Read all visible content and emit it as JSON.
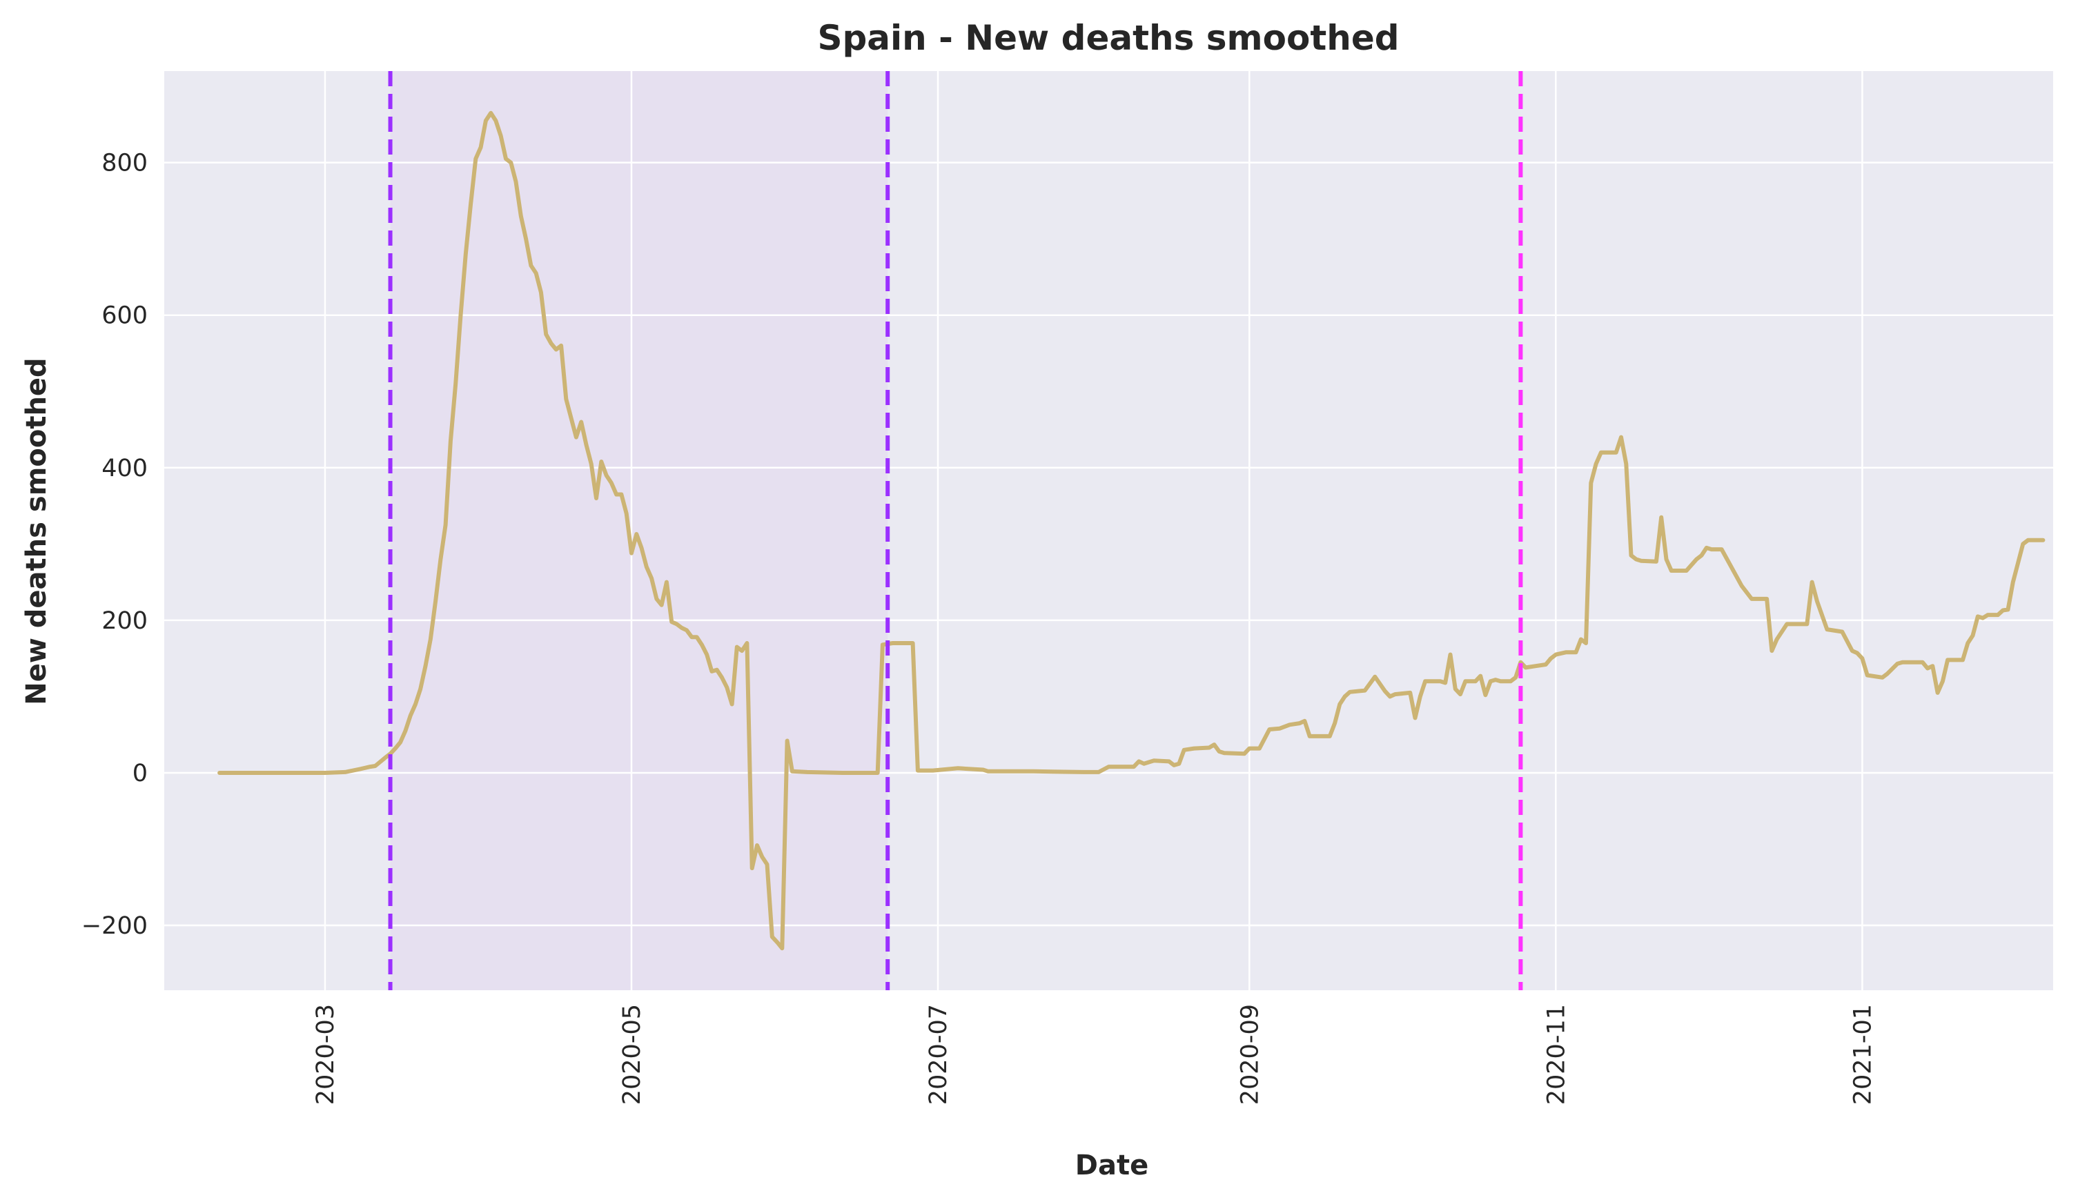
{
  "chart_data": {
    "type": "line",
    "title": "Spain - New deaths smoothed",
    "xlabel": "Date",
    "ylabel": "New deaths smoothed",
    "xlim": [
      "2020-01-29",
      "2021-02-08"
    ],
    "ylim": [
      -285,
      920
    ],
    "x_ticks": [
      "2020-03",
      "2020-05",
      "2020-07",
      "2020-09",
      "2020-11",
      "2021-01"
    ],
    "y_ticks": [
      -200,
      0,
      200,
      400,
      600,
      800
    ],
    "y_tick_labels": [
      "−200",
      "0",
      "200",
      "400",
      "600",
      "800"
    ],
    "grid": true,
    "colors": {
      "background": "#eaeaf2",
      "grid": "#ffffff",
      "line": "#ccb474",
      "shade": "#e6e0f0",
      "vline_wave": "#9b30ff",
      "vline_marker": "#ff33ff"
    },
    "shaded_region": {
      "start": "2020-03-14",
      "end": "2020-06-21"
    },
    "vertical_lines": [
      {
        "date": "2020-03-14",
        "color": "#9b30ff"
      },
      {
        "date": "2020-06-21",
        "color": "#9b30ff"
      },
      {
        "date": "2020-10-25",
        "color": "#ff33ff"
      }
    ],
    "series": [
      {
        "values": [
          [
            "2020-02-09",
            0
          ],
          [
            "2020-02-20",
            0
          ],
          [
            "2020-03-01",
            0
          ],
          [
            "2020-03-05",
            1
          ],
          [
            "2020-03-08",
            5
          ],
          [
            "2020-03-10",
            8
          ],
          [
            "2020-03-11",
            9
          ],
          [
            "2020-03-13",
            20
          ],
          [
            "2020-03-14",
            25
          ],
          [
            "2020-03-15",
            32
          ],
          [
            "2020-03-16",
            40
          ],
          [
            "2020-03-17",
            55
          ],
          [
            "2020-03-18",
            75
          ],
          [
            "2020-03-19",
            90
          ],
          [
            "2020-03-20",
            110
          ],
          [
            "2020-03-21",
            140
          ],
          [
            "2020-03-22",
            175
          ],
          [
            "2020-03-23",
            225
          ],
          [
            "2020-03-24",
            280
          ],
          [
            "2020-03-25",
            325
          ],
          [
            "2020-03-26",
            435
          ],
          [
            "2020-03-27",
            510
          ],
          [
            "2020-03-28",
            600
          ],
          [
            "2020-03-29",
            680
          ],
          [
            "2020-03-30",
            745
          ],
          [
            "2020-03-31",
            805
          ],
          [
            "2020-04-01",
            820
          ],
          [
            "2020-04-02",
            855
          ],
          [
            "2020-04-03",
            865
          ],
          [
            "2020-04-04",
            855
          ],
          [
            "2020-04-05",
            835
          ],
          [
            "2020-04-06",
            805
          ],
          [
            "2020-04-07",
            800
          ],
          [
            "2020-04-08",
            775
          ],
          [
            "2020-04-09",
            730
          ],
          [
            "2020-04-10",
            700
          ],
          [
            "2020-04-11",
            665
          ],
          [
            "2020-04-12",
            655
          ],
          [
            "2020-04-13",
            630
          ],
          [
            "2020-04-14",
            575
          ],
          [
            "2020-04-15",
            563
          ],
          [
            "2020-04-16",
            555
          ],
          [
            "2020-04-17",
            560
          ],
          [
            "2020-04-18",
            490
          ],
          [
            "2020-04-19",
            465
          ],
          [
            "2020-04-20",
            440
          ],
          [
            "2020-04-21",
            460
          ],
          [
            "2020-04-22",
            430
          ],
          [
            "2020-04-23",
            405
          ],
          [
            "2020-04-24",
            360
          ],
          [
            "2020-04-25",
            408
          ],
          [
            "2020-04-26",
            390
          ],
          [
            "2020-04-27",
            380
          ],
          [
            "2020-04-28",
            365
          ],
          [
            "2020-04-29",
            365
          ],
          [
            "2020-04-30",
            340
          ],
          [
            "2020-05-01",
            288
          ],
          [
            "2020-05-02",
            313
          ],
          [
            "2020-05-03",
            295
          ],
          [
            "2020-05-04",
            270
          ],
          [
            "2020-05-05",
            255
          ],
          [
            "2020-05-06",
            228
          ],
          [
            "2020-05-07",
            220
          ],
          [
            "2020-05-08",
            250
          ],
          [
            "2020-05-09",
            198
          ],
          [
            "2020-05-10",
            195
          ],
          [
            "2020-05-11",
            190
          ],
          [
            "2020-05-12",
            187
          ],
          [
            "2020-05-13",
            178
          ],
          [
            "2020-05-14",
            178
          ],
          [
            "2020-05-15",
            168
          ],
          [
            "2020-05-16",
            155
          ],
          [
            "2020-05-17",
            133
          ],
          [
            "2020-05-18",
            135
          ],
          [
            "2020-05-19",
            125
          ],
          [
            "2020-05-20",
            112
          ],
          [
            "2020-05-21",
            90
          ],
          [
            "2020-05-22",
            165
          ],
          [
            "2020-05-23",
            160
          ],
          [
            "2020-05-24",
            170
          ],
          [
            "2020-05-25",
            -125
          ],
          [
            "2020-05-26",
            -95
          ],
          [
            "2020-05-27",
            -110
          ],
          [
            "2020-05-28",
            -120
          ],
          [
            "2020-05-29",
            -215
          ],
          [
            "2020-05-30",
            -222
          ],
          [
            "2020-05-31",
            -230
          ],
          [
            "2020-06-01",
            42
          ],
          [
            "2020-06-02",
            2
          ],
          [
            "2020-06-05",
            1
          ],
          [
            "2020-06-12",
            0
          ],
          [
            "2020-06-19",
            0
          ],
          [
            "2020-06-20",
            168
          ],
          [
            "2020-06-22",
            170
          ],
          [
            "2020-06-26",
            170
          ],
          [
            "2020-06-27",
            3
          ],
          [
            "2020-06-30",
            3
          ],
          [
            "2020-07-05",
            6
          ],
          [
            "2020-07-10",
            4
          ],
          [
            "2020-07-11",
            2
          ],
          [
            "2020-07-20",
            2
          ],
          [
            "2020-07-30",
            1
          ],
          [
            "2020-08-02",
            1
          ],
          [
            "2020-08-04",
            8
          ],
          [
            "2020-08-09",
            8
          ],
          [
            "2020-08-10",
            15
          ],
          [
            "2020-08-11",
            12
          ],
          [
            "2020-08-13",
            16
          ],
          [
            "2020-08-16",
            15
          ],
          [
            "2020-08-17",
            10
          ],
          [
            "2020-08-18",
            12
          ],
          [
            "2020-08-19",
            30
          ],
          [
            "2020-08-21",
            32
          ],
          [
            "2020-08-24",
            33
          ],
          [
            "2020-08-25",
            37
          ],
          [
            "2020-08-26",
            28
          ],
          [
            "2020-08-27",
            26
          ],
          [
            "2020-08-31",
            25
          ],
          [
            "2020-09-01",
            32
          ],
          [
            "2020-09-03",
            32
          ],
          [
            "2020-09-05",
            57
          ],
          [
            "2020-09-07",
            58
          ],
          [
            "2020-09-09",
            63
          ],
          [
            "2020-09-11",
            65
          ],
          [
            "2020-09-12",
            68
          ],
          [
            "2020-09-13",
            48
          ],
          [
            "2020-09-17",
            48
          ],
          [
            "2020-09-18",
            65
          ],
          [
            "2020-09-19",
            90
          ],
          [
            "2020-09-20",
            100
          ],
          [
            "2020-09-21",
            106
          ],
          [
            "2020-09-24",
            108
          ],
          [
            "2020-09-26",
            126
          ],
          [
            "2020-09-28",
            107
          ],
          [
            "2020-09-29",
            100
          ],
          [
            "2020-09-30",
            103
          ],
          [
            "2020-10-03",
            105
          ],
          [
            "2020-10-04",
            72
          ],
          [
            "2020-10-05",
            100
          ],
          [
            "2020-10-06",
            120
          ],
          [
            "2020-10-09",
            120
          ],
          [
            "2020-10-10",
            118
          ],
          [
            "2020-10-11",
            155
          ],
          [
            "2020-10-12",
            110
          ],
          [
            "2020-10-13",
            103
          ],
          [
            "2020-10-14",
            120
          ],
          [
            "2020-10-16",
            120
          ],
          [
            "2020-10-17",
            127
          ],
          [
            "2020-10-18",
            102
          ],
          [
            "2020-10-19",
            120
          ],
          [
            "2020-10-20",
            122
          ],
          [
            "2020-10-21",
            120
          ],
          [
            "2020-10-23",
            120
          ],
          [
            "2020-10-24",
            125
          ],
          [
            "2020-10-25",
            145
          ],
          [
            "2020-10-26",
            138
          ],
          [
            "2020-10-28",
            140
          ],
          [
            "2020-10-30",
            142
          ],
          [
            "2020-10-31",
            150
          ],
          [
            "2020-11-01",
            155
          ],
          [
            "2020-11-03",
            158
          ],
          [
            "2020-11-05",
            158
          ],
          [
            "2020-11-06",
            175
          ],
          [
            "2020-11-07",
            170
          ],
          [
            "2020-11-08",
            380
          ],
          [
            "2020-11-09",
            405
          ],
          [
            "2020-11-10",
            420
          ],
          [
            "2020-11-13",
            420
          ],
          [
            "2020-11-14",
            440
          ],
          [
            "2020-11-15",
            405
          ],
          [
            "2020-11-16",
            285
          ],
          [
            "2020-11-17",
            280
          ],
          [
            "2020-11-18",
            278
          ],
          [
            "2020-11-21",
            277
          ],
          [
            "2020-11-22",
            335
          ],
          [
            "2020-11-23",
            280
          ],
          [
            "2020-11-24",
            265
          ],
          [
            "2020-11-27",
            265
          ],
          [
            "2020-11-29",
            280
          ],
          [
            "2020-11-30",
            285
          ],
          [
            "2020-12-01",
            295
          ],
          [
            "2020-12-02",
            293
          ],
          [
            "2020-12-04",
            293
          ],
          [
            "2020-12-08",
            245
          ],
          [
            "2020-12-10",
            228
          ],
          [
            "2020-12-13",
            228
          ],
          [
            "2020-12-14",
            160
          ],
          [
            "2020-12-15",
            175
          ],
          [
            "2020-12-17",
            195
          ],
          [
            "2020-12-21",
            195
          ],
          [
            "2020-12-22",
            250
          ],
          [
            "2020-12-23",
            225
          ],
          [
            "2020-12-25",
            188
          ],
          [
            "2020-12-28",
            185
          ],
          [
            "2020-12-30",
            160
          ],
          [
            "2020-12-31",
            157
          ],
          [
            "2021-01-01",
            150
          ],
          [
            "2021-01-02",
            128
          ],
          [
            "2021-01-05",
            125
          ],
          [
            "2021-01-06",
            130
          ],
          [
            "2021-01-08",
            143
          ],
          [
            "2021-01-09",
            145
          ],
          [
            "2021-01-13",
            145
          ],
          [
            "2021-01-14",
            137
          ],
          [
            "2021-01-15",
            140
          ],
          [
            "2021-01-16",
            105
          ],
          [
            "2021-01-17",
            120
          ],
          [
            "2021-01-18",
            148
          ],
          [
            "2021-01-21",
            148
          ],
          [
            "2021-01-22",
            170
          ],
          [
            "2021-01-23",
            180
          ],
          [
            "2021-01-24",
            205
          ],
          [
            "2021-01-25",
            203
          ],
          [
            "2021-01-26",
            207
          ],
          [
            "2021-01-28",
            207
          ],
          [
            "2021-01-29",
            213
          ],
          [
            "2021-01-30",
            214
          ],
          [
            "2021-01-31",
            250
          ],
          [
            "2021-02-02",
            300
          ],
          [
            "2021-02-03",
            305
          ],
          [
            "2021-02-06",
            305
          ]
        ]
      }
    ]
  }
}
